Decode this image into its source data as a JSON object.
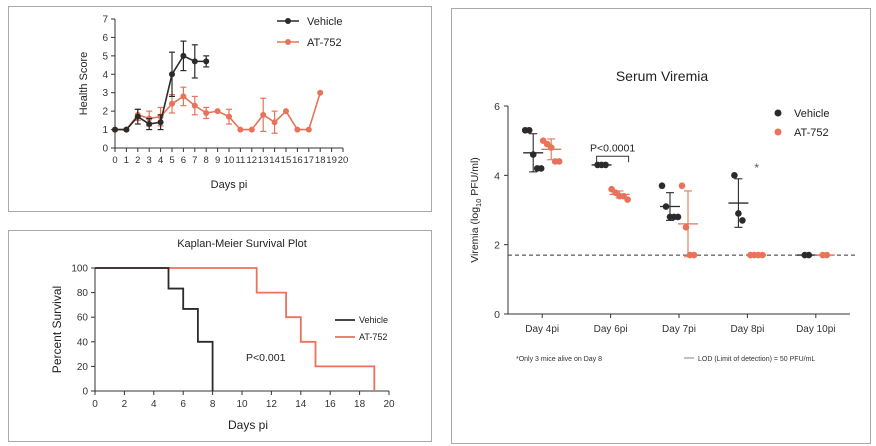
{
  "charts": [
    {
      "id": "health",
      "type": "line",
      "title": "",
      "xlabel": "Days pi",
      "ylabel": "Health  Score",
      "xlim": [
        0,
        20
      ],
      "ylim": [
        0,
        7
      ],
      "xticks": [
        "0",
        "1",
        "2",
        "3",
        "4",
        "5",
        "6",
        "7",
        "8",
        "9",
        "10",
        "11",
        "12",
        "13",
        "14",
        "15",
        "16",
        "17",
        "18",
        "19",
        "20"
      ],
      "yticks": [
        "0",
        "1",
        "2",
        "3",
        "4",
        "5",
        "6",
        "7"
      ],
      "legend_position": "top-right",
      "series": [
        {
          "name": "Vehicle",
          "color": "#2b2b2b",
          "x": [
            0,
            1,
            2,
            3,
            4,
            5,
            6,
            7,
            8
          ],
          "y": [
            1.0,
            1.0,
            1.7,
            1.3,
            1.4,
            4.0,
            5.0,
            4.7,
            4.7
          ],
          "err": [
            0,
            0,
            0.4,
            0.3,
            0.4,
            1.2,
            0.8,
            0.9,
            0.3
          ]
        },
        {
          "name": "AT-752",
          "color": "#e8735a",
          "x": [
            0,
            1,
            2,
            3,
            4,
            5,
            6,
            7,
            8,
            9,
            10,
            11,
            12,
            13,
            14,
            15,
            16,
            17,
            18
          ],
          "y": [
            1.0,
            1.0,
            1.8,
            1.6,
            1.7,
            2.4,
            2.8,
            2.3,
            1.9,
            2.0,
            1.7,
            1.0,
            1.0,
            1.8,
            1.4,
            2.0,
            1.0,
            1.0,
            3.0
          ],
          "err": [
            0,
            0,
            0.3,
            0.4,
            0.5,
            0.5,
            0.5,
            0.5,
            0.3,
            0,
            0.4,
            0,
            0,
            0.9,
            0.6,
            0,
            0,
            0,
            0
          ]
        }
      ]
    },
    {
      "id": "km",
      "type": "line",
      "title": "Kaplan-Meier Survival Plot",
      "xlabel": "Days pi",
      "ylabel": "Percent Survival",
      "xlim": [
        0,
        20
      ],
      "ylim": [
        0,
        100
      ],
      "xticks": [
        "0",
        "2",
        "4",
        "6",
        "8",
        "10",
        "12",
        "14",
        "16",
        "18",
        "20"
      ],
      "yticks": [
        "0",
        "20",
        "40",
        "60",
        "80",
        "100"
      ],
      "legend_position": "center-right",
      "annotation": "P<0.001",
      "series": [
        {
          "name": "Vehicle",
          "color": "#2b2b2b",
          "steps": [
            [
              0,
              100
            ],
            [
              5,
              100
            ],
            [
              5,
              83.3
            ],
            [
              6,
              83.3
            ],
            [
              6,
              66.7
            ],
            [
              7,
              66.7
            ],
            [
              7,
              40
            ],
            [
              8,
              40
            ],
            [
              8,
              0
            ]
          ]
        },
        {
          "name": "AT-752",
          "color": "#e8735a",
          "steps": [
            [
              0,
              100
            ],
            [
              11,
              100
            ],
            [
              11,
              80
            ],
            [
              13,
              80
            ],
            [
              13,
              60
            ],
            [
              14,
              60
            ],
            [
              14,
              40
            ],
            [
              15,
              40
            ],
            [
              15,
              20
            ],
            [
              19,
              20
            ],
            [
              19,
              0
            ]
          ]
        }
      ]
    },
    {
      "id": "viremia",
      "type": "scatter",
      "title": "Serum Viremia",
      "xlabel": "",
      "ylabel_parts": [
        "Viremia (log",
        "10",
        " PFU/ml)"
      ],
      "ylim": [
        0,
        6
      ],
      "yticks": [
        "0",
        "2",
        "4",
        "6"
      ],
      "categories": [
        "Day 4pi",
        "Day 6pi",
        "Day 7pi",
        "Day 8pi",
        "Day 10pi"
      ],
      "lod": 1.7,
      "annotation_pvalue": "P<0.0001",
      "annotation_star": "*",
      "footnote_left": "*Only 3 mice alive on Day 8",
      "footnote_right": "LOD (Limit of detection) = 50 PFU/mL",
      "legend_position": "top-right",
      "series": [
        {
          "name": "Vehicle",
          "color": "#2b2b2b",
          "points": [
            [
              5.3,
              5.3,
              4.6,
              4.2,
              4.2
            ],
            [
              4.3,
              4.3,
              4.3
            ],
            [
              3.7,
              3.1,
              2.8,
              2.8,
              2.8
            ],
            [
              4.0,
              2.9,
              2.7
            ],
            [
              1.7,
              1.7
            ]
          ],
          "mean": [
            4.65,
            4.3,
            3.1,
            3.2,
            1.7
          ],
          "sd": [
            0.55,
            0.05,
            0.4,
            0.7,
            0
          ]
        },
        {
          "name": "AT-752",
          "color": "#e8735a",
          "points": [
            [
              5.0,
              4.9,
              4.8,
              4.4,
              4.4
            ],
            [
              3.6,
              3.5,
              3.4,
              3.4,
              3.3
            ],
            [
              3.7,
              2.5,
              1.7,
              1.7
            ],
            [
              1.7,
              1.7,
              1.7,
              1.7
            ],
            [
              1.7,
              1.7
            ]
          ],
          "mean": [
            4.75,
            3.45,
            2.6,
            1.7,
            1.7
          ],
          "sd": [
            0.3,
            0.1,
            0.95,
            0,
            0
          ]
        }
      ]
    }
  ]
}
